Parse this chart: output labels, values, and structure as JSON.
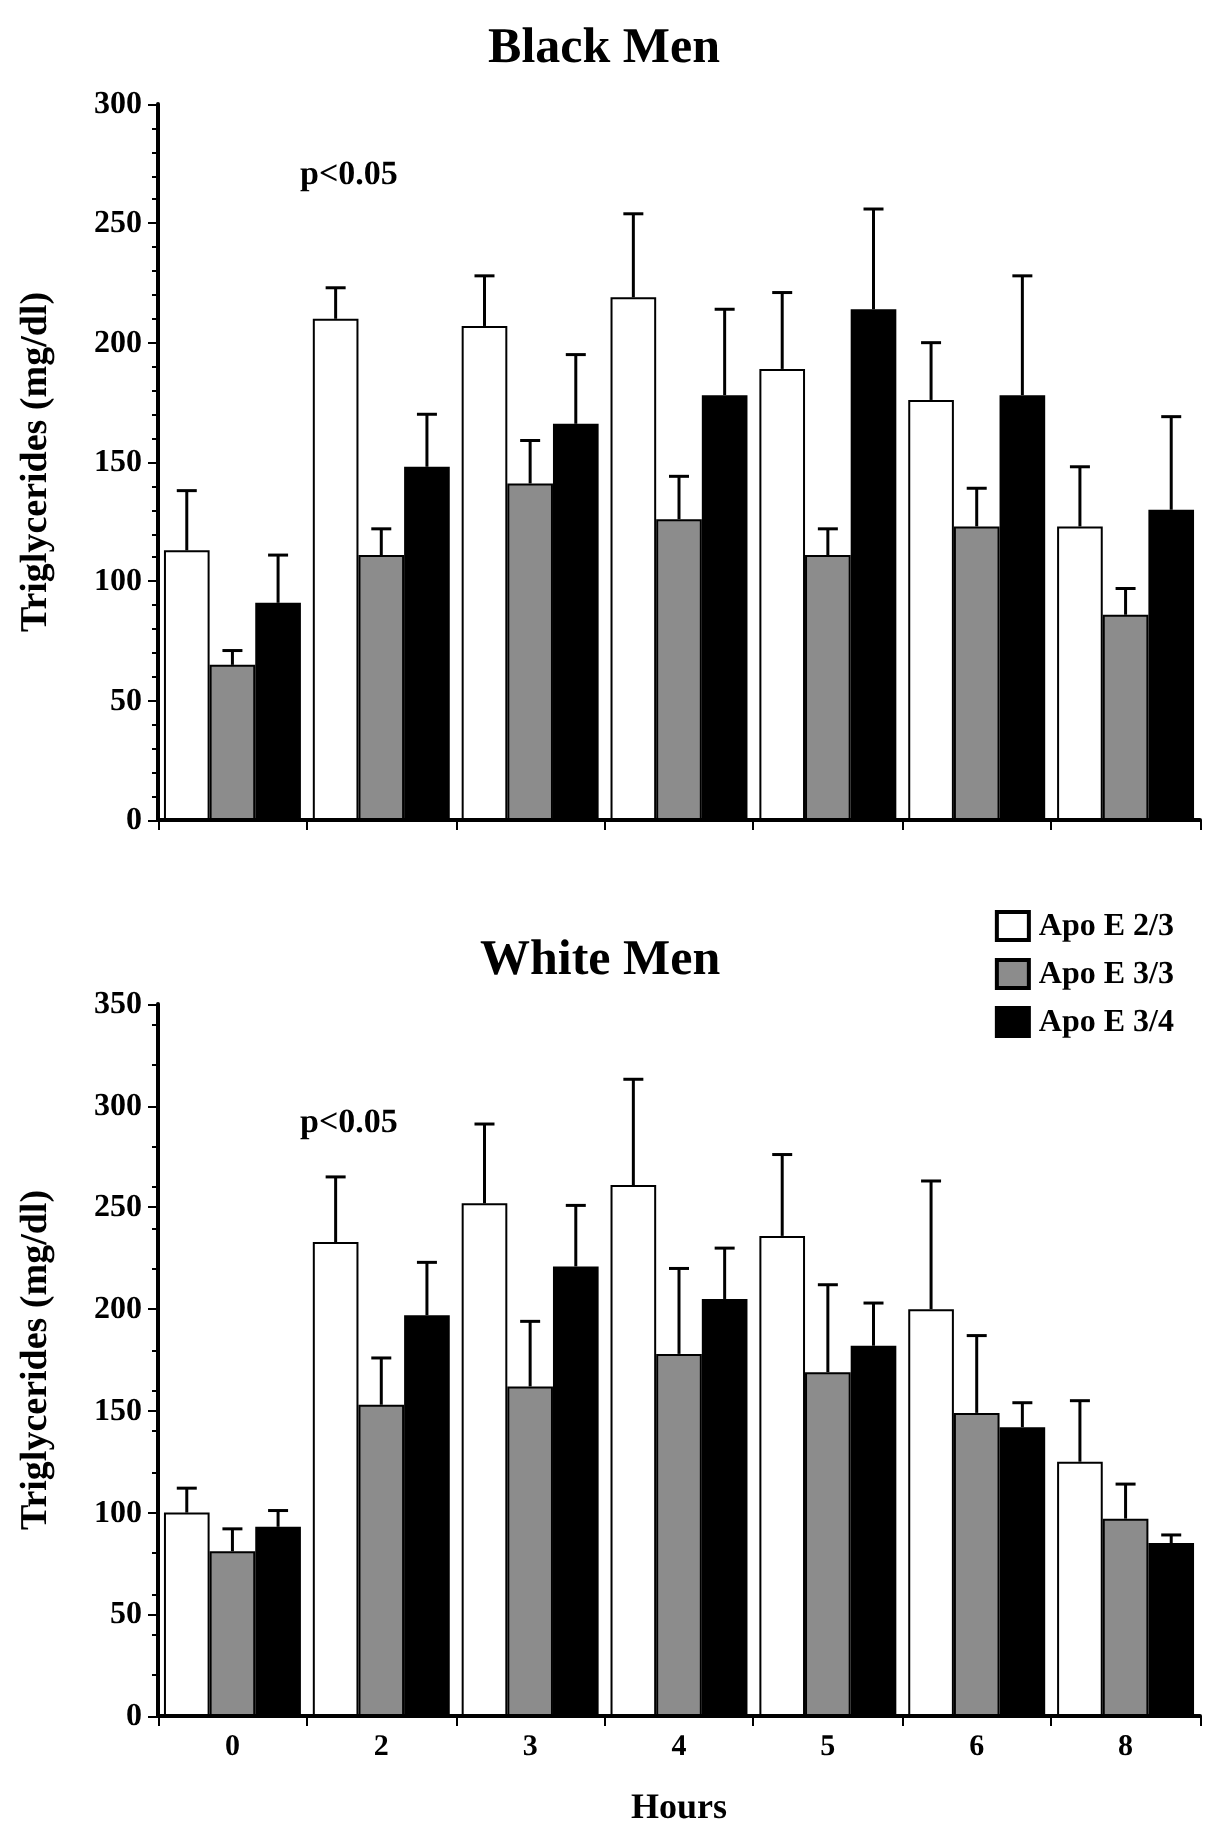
{
  "chart_data": [
    {
      "type": "bar",
      "title": "Black Men",
      "ylabel": "Triglycerides (mg/dl)",
      "categories": [
        "0",
        "2",
        "3",
        "4",
        "5",
        "6",
        "8"
      ],
      "ylim": [
        0,
        300
      ],
      "yticks": [
        0,
        50,
        100,
        150,
        200,
        250,
        300
      ],
      "tick_labels": "y",
      "annotations": [
        "p<0.05"
      ],
      "series": [
        {
          "color": "#ffffff",
          "values": [
            113,
            210,
            207,
            219,
            189,
            176,
            123
          ],
          "errors": [
            [
              113,
              138
            ],
            [
              210,
              223
            ],
            [
              207,
              228
            ],
            [
              219,
              254
            ],
            [
              189,
              221
            ],
            [
              176,
              200
            ],
            [
              123,
              148
            ]
          ]
        },
        {
          "color": "#8c8c8c",
          "values": [
            65,
            111,
            141,
            126,
            111,
            123,
            86
          ],
          "errors": [
            [
              65,
              71
            ],
            [
              111,
              122
            ],
            [
              141,
              159
            ],
            [
              126,
              144
            ],
            [
              111,
              122
            ],
            [
              123,
              139
            ],
            [
              86,
              97
            ]
          ]
        },
        {
          "color": "#000000",
          "values": [
            91,
            148,
            166,
            178,
            214,
            178,
            130
          ],
          "errors": [
            [
              91,
              111
            ],
            [
              148,
              170
            ],
            [
              166,
              195
            ],
            [
              178,
              214
            ],
            [
              214,
              256
            ],
            [
              178,
              228
            ],
            [
              130,
              169
            ]
          ]
        }
      ]
    },
    {
      "type": "bar",
      "title": "White Men",
      "ylabel": "Triglycerides (mg/dl)",
      "xlabel": "Hours",
      "categories": [
        "0",
        "2",
        "3",
        "4",
        "5",
        "6",
        "8"
      ],
      "ylim": [
        0,
        350
      ],
      "yticks": [
        0,
        50,
        100,
        150,
        200,
        250,
        300,
        350
      ],
      "legend": "top right",
      "annotations": [
        "p<0.05"
      ],
      "series": [
        {
          "name": "Apo E 2/3",
          "color": "#ffffff",
          "values": [
            100,
            233,
            252,
            261,
            236,
            200,
            125
          ],
          "errors": [
            [
              100,
              112
            ],
            [
              233,
              265
            ],
            [
              252,
              291
            ],
            [
              261,
              313
            ],
            [
              236,
              276
            ],
            [
              200,
              263
            ],
            [
              125,
              155
            ]
          ]
        },
        {
          "name": "Apo E 3/3",
          "color": "#8c8c8c",
          "values": [
            81,
            153,
            162,
            178,
            169,
            149,
            97
          ],
          "errors": [
            [
              81,
              92
            ],
            [
              153,
              176
            ],
            [
              162,
              194
            ],
            [
              178,
              220
            ],
            [
              169,
              212
            ],
            [
              149,
              187
            ],
            [
              97,
              114
            ]
          ]
        },
        {
          "name": "Apo E 3/4",
          "color": "#000000",
          "values": [
            93,
            197,
            221,
            205,
            182,
            142,
            85
          ],
          "errors": [
            [
              93,
              101
            ],
            [
              197,
              223
            ],
            [
              221,
              251
            ],
            [
              205,
              230
            ],
            [
              182,
              203
            ],
            [
              142,
              154
            ],
            [
              85,
              89
            ]
          ]
        }
      ]
    }
  ]
}
